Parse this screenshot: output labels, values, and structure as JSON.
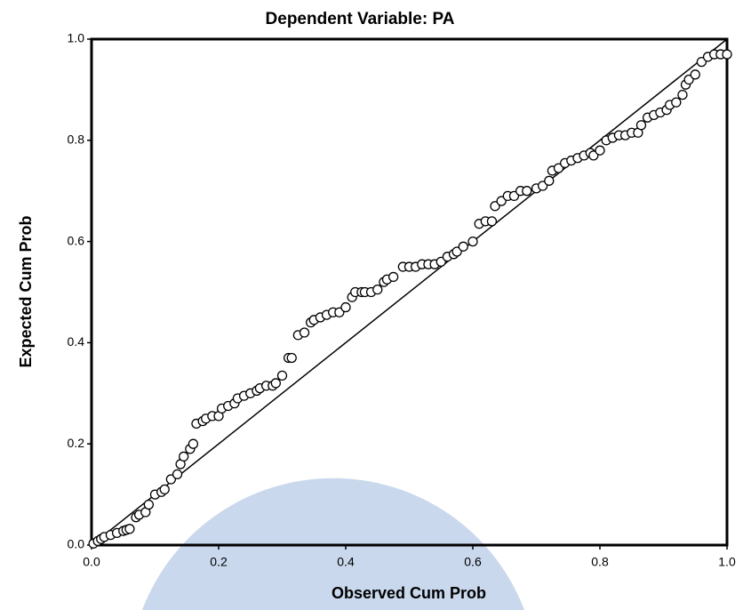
{
  "chart_data": {
    "type": "scatter",
    "title": "Dependent Variable: PA",
    "xlabel": "Observed Cum Prob",
    "ylabel": "Expected Cum Prob",
    "xlim": [
      0,
      1
    ],
    "ylim": [
      0,
      1
    ],
    "xticks": [
      {
        "value": 0,
        "label": "0.0"
      },
      0.2,
      0.4,
      0.6,
      0.8,
      {
        "value": 1,
        "label": "1.0"
      }
    ],
    "yticks": [
      {
        "value": 0,
        "label": "0.0"
      },
      0.2,
      0.4,
      0.6,
      0.8,
      {
        "value": 1,
        "label": "1.0"
      }
    ],
    "color": "#000000",
    "series": [
      {
        "x": [
          0.003,
          0.01,
          0.015,
          0.02,
          0.03,
          0.04,
          0.05,
          0.055,
          0.06,
          0.07,
          0.075,
          0.085,
          0.09,
          0.1,
          0.11,
          0.115,
          0.125,
          0.135,
          0.14,
          0.145,
          0.155,
          0.16,
          0.165,
          0.175,
          0.18,
          0.19,
          0.2,
          0.205,
          0.215,
          0.225,
          0.23,
          0.24,
          0.25,
          0.26,
          0.265,
          0.275,
          0.285,
          0.29,
          0.3,
          0.31,
          0.315,
          0.325,
          0.335,
          0.345,
          0.35,
          0.36,
          0.37,
          0.38,
          0.39,
          0.4,
          0.41,
          0.415,
          0.425,
          0.43,
          0.44,
          0.45,
          0.46,
          0.465,
          0.475,
          0.49,
          0.5,
          0.51,
          0.52,
          0.53,
          0.54,
          0.55,
          0.56,
          0.57,
          0.575,
          0.585,
          0.6,
          0.61,
          0.62,
          0.63,
          0.635,
          0.645,
          0.655,
          0.665,
          0.675,
          0.685,
          0.7,
          0.71,
          0.72,
          0.725,
          0.735,
          0.745,
          0.755,
          0.765,
          0.775,
          0.785,
          0.79,
          0.8,
          0.81,
          0.82,
          0.83,
          0.84,
          0.85,
          0.86,
          0.865,
          0.875,
          0.885,
          0.895,
          0.905,
          0.91,
          0.92,
          0.93,
          0.935,
          0.94,
          0.95,
          0.96,
          0.97,
          0.98,
          0.99,
          1.0
        ],
        "y": [
          0.003,
          0.008,
          0.012,
          0.016,
          0.02,
          0.024,
          0.028,
          0.03,
          0.032,
          0.055,
          0.06,
          0.065,
          0.08,
          0.1,
          0.105,
          0.11,
          0.13,
          0.14,
          0.16,
          0.175,
          0.19,
          0.2,
          0.24,
          0.245,
          0.25,
          0.255,
          0.255,
          0.27,
          0.275,
          0.28,
          0.29,
          0.295,
          0.3,
          0.305,
          0.31,
          0.315,
          0.315,
          0.32,
          0.335,
          0.37,
          0.37,
          0.415,
          0.42,
          0.44,
          0.445,
          0.45,
          0.455,
          0.46,
          0.46,
          0.47,
          0.49,
          0.5,
          0.5,
          0.5,
          0.5,
          0.505,
          0.52,
          0.525,
          0.53,
          0.55,
          0.55,
          0.55,
          0.555,
          0.555,
          0.555,
          0.56,
          0.57,
          0.575,
          0.58,
          0.59,
          0.6,
          0.635,
          0.64,
          0.64,
          0.67,
          0.68,
          0.69,
          0.69,
          0.7,
          0.7,
          0.705,
          0.71,
          0.72,
          0.74,
          0.745,
          0.755,
          0.76,
          0.765,
          0.77,
          0.775,
          0.77,
          0.78,
          0.8,
          0.805,
          0.81,
          0.81,
          0.815,
          0.815,
          0.83,
          0.845,
          0.85,
          0.855,
          0.86,
          0.87,
          0.875,
          0.89,
          0.91,
          0.92,
          0.93,
          0.955,
          0.965,
          0.97,
          0.97,
          0.97
        ]
      }
    ]
  }
}
